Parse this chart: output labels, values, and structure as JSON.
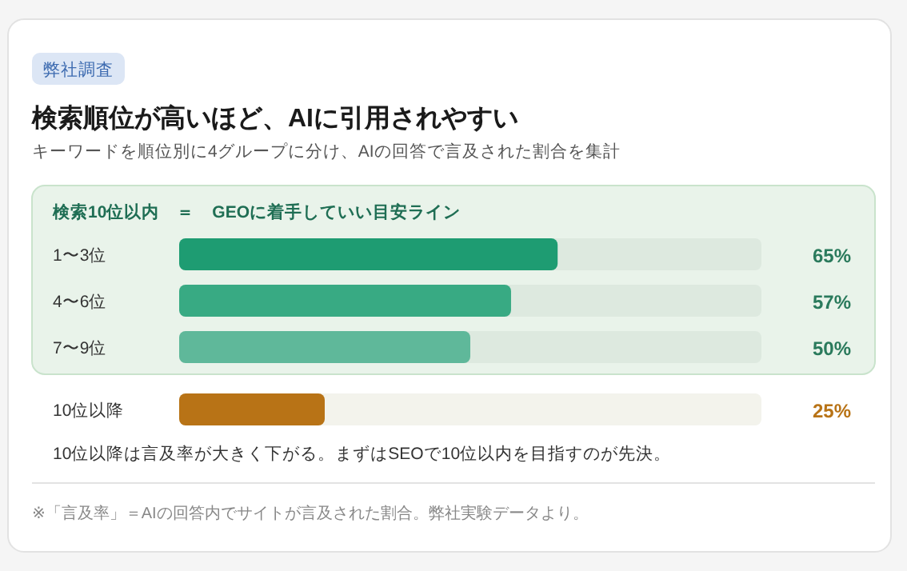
{
  "chart_data": {
    "type": "bar",
    "orientation": "horizontal",
    "title": "検索順位が高いほど、AIに引用されやすい",
    "subtitle": "キーワードを順位別に4グループに分け、AIの回答で言及された割合を集計",
    "categories": [
      "1〜3位",
      "4〜6位",
      "7〜9位",
      "10位以降"
    ],
    "values": [
      65,
      57,
      50,
      25
    ],
    "colors": [
      "#1e9c72",
      "#38aa83",
      "#5fb89a",
      "#b87316"
    ],
    "value_labels": [
      "65%",
      "57%",
      "50%",
      "25%"
    ],
    "xlim": [
      0,
      100
    ],
    "bands": [
      {
        "axis": "y",
        "from": "1〜3位",
        "to": "7〜9位",
        "label": "検索10位以内　＝　GEOに着手していい目安ライン",
        "color": "#e9f3ea"
      }
    ],
    "annotations": [
      "弊社調査",
      "10位以降は言及率が大きく下がる。まずはSEOで10位以内を目指すのが先決。",
      "※「言及率」＝AIの回答内でサイトが言及された割合。弊社実験データより。"
    ]
  }
}
